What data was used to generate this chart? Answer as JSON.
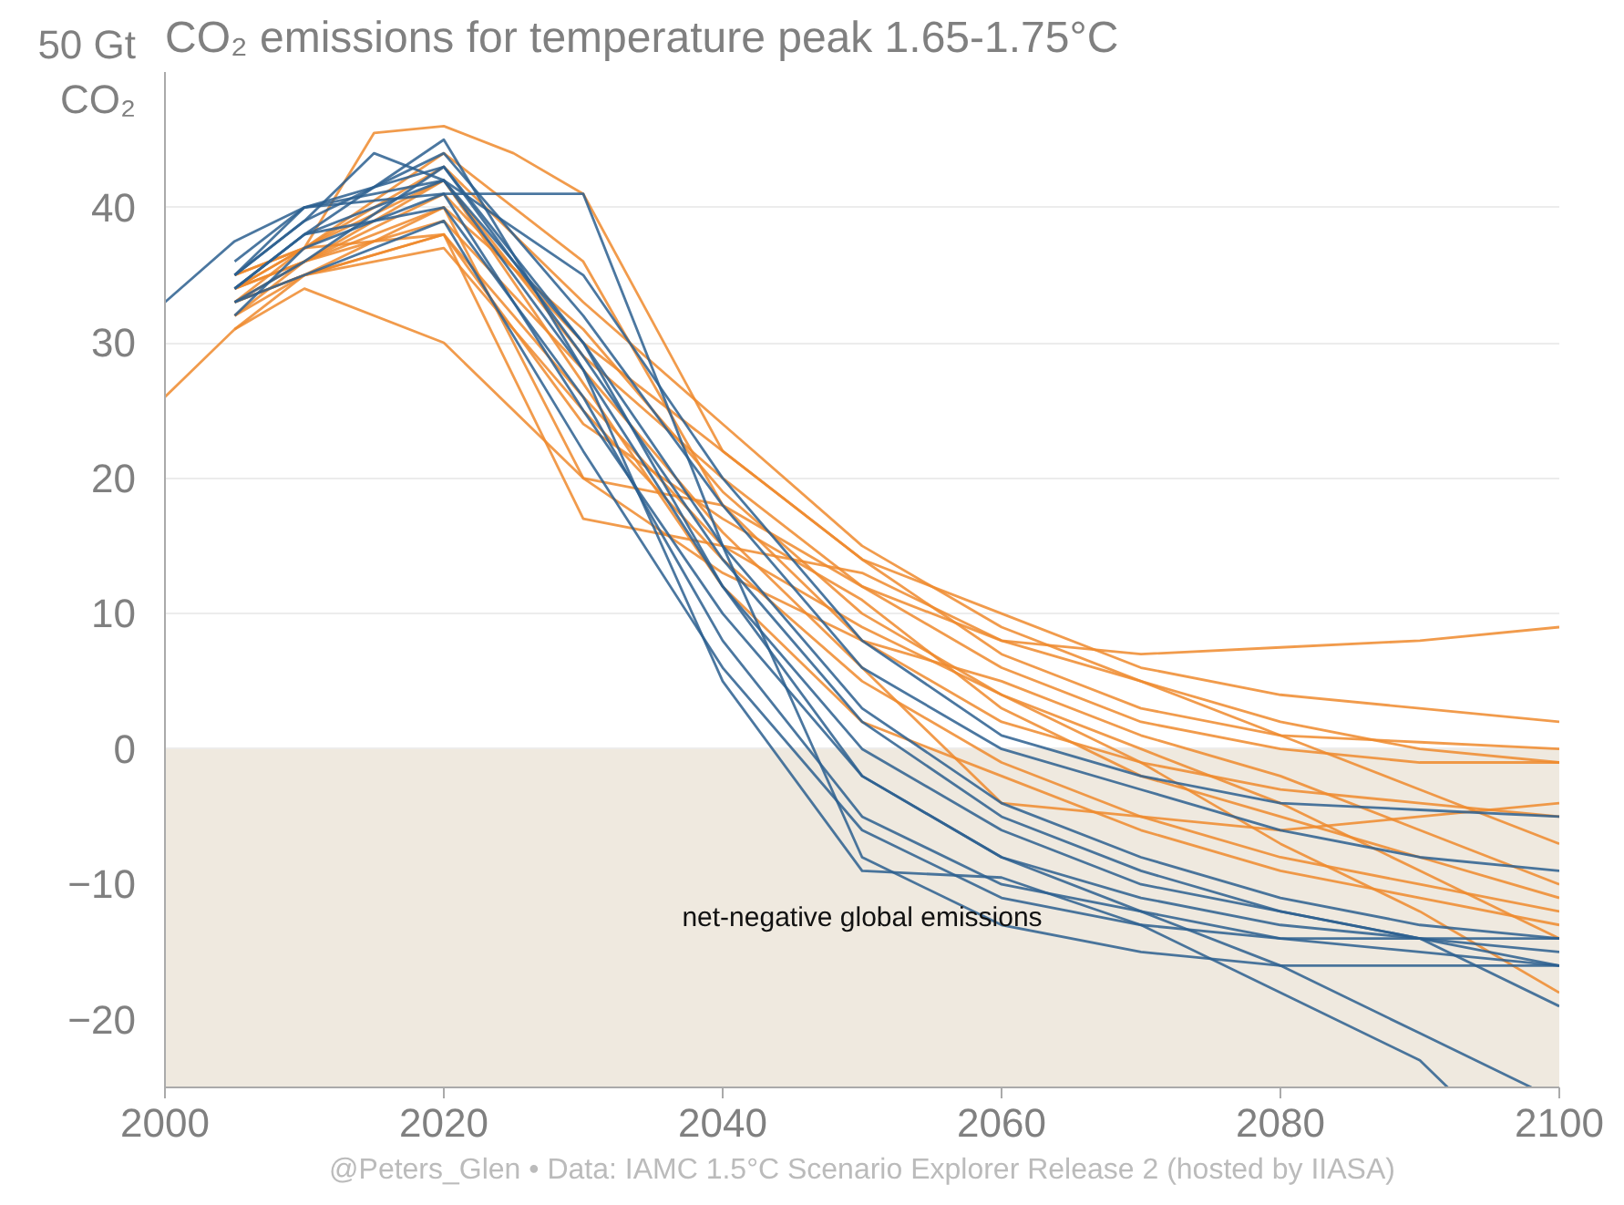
{
  "chart_data": {
    "type": "line",
    "title": "CO₂ emissions for temperature peak 1.65-1.75°C",
    "x": [
      2005,
      2010,
      2020,
      2030,
      2040,
      2050,
      2060,
      2070,
      2080,
      2090,
      2100
    ],
    "series": [
      {
        "color": "#ee8a2d",
        "x": [
          2000,
          2005,
          2010,
          2020,
          2030,
          2040,
          2050,
          2060,
          2070,
          2080,
          2090,
          2100
        ],
        "values": [
          26,
          31,
          35,
          40,
          20,
          18,
          12,
          8,
          7,
          7.5,
          8,
          9
        ]
      },
      {
        "color": "#ee8a2d",
        "x": [
          2005,
          2010,
          2015,
          2020,
          2025,
          2030,
          2040,
          2050,
          2060,
          2070,
          2080,
          2090,
          2100
        ],
        "values": [
          34,
          37,
          45.5,
          46,
          44,
          41,
          22,
          14,
          10,
          6,
          4,
          3,
          2
        ]
      },
      {
        "color": "#ee8a2d",
        "values": [
          33,
          35,
          38,
          17,
          15,
          13,
          8,
          5,
          2,
          0,
          -1
        ]
      },
      {
        "color": "#ee8a2d",
        "values": [
          32,
          36,
          42,
          29,
          20,
          12,
          6,
          2,
          0,
          -1,
          -1
        ]
      },
      {
        "color": "#ee8a2d",
        "values": [
          34,
          37,
          44,
          36,
          18,
          8,
          2,
          -1,
          -3,
          -4,
          -5
        ]
      },
      {
        "color": "#ee8a2d",
        "values": [
          33,
          35,
          37,
          25,
          14,
          5,
          -1,
          -5,
          -8,
          -10,
          -12
        ]
      },
      {
        "color": "#ee8a2d",
        "values": [
          31,
          34,
          30,
          20,
          13,
          8,
          5,
          1,
          -2,
          -6,
          -10
        ]
      },
      {
        "color": "#ee8a2d",
        "values": [
          34,
          36,
          41,
          30,
          22,
          14,
          7,
          3,
          1,
          0.5,
          0
        ]
      },
      {
        "color": "#ee8a2d",
        "values": [
          35,
          37,
          43,
          33,
          24,
          15,
          9,
          5,
          1,
          -3,
          -7
        ]
      },
      {
        "color": "#ee8a2d",
        "values": [
          33,
          36,
          39,
          28,
          16,
          6,
          -4,
          -5,
          -6,
          -5,
          -4
        ]
      },
      {
        "color": "#ee8a2d",
        "values": [
          32,
          35,
          38,
          26,
          15,
          9,
          4,
          -1,
          -7,
          -12,
          -18
        ]
      },
      {
        "color": "#ee8a2d",
        "values": [
          34,
          36,
          40,
          31,
          19,
          10,
          4,
          0,
          -4,
          -9,
          -14
        ]
      },
      {
        "color": "#ee8a2d",
        "values": [
          33,
          37,
          42,
          27,
          12,
          2,
          -2,
          -6,
          -9,
          -11,
          -13
        ]
      },
      {
        "color": "#ee8a2d",
        "values": [
          35,
          37,
          38,
          24,
          17,
          11,
          3,
          -2,
          -5,
          -8,
          -11
        ]
      },
      {
        "color": "#2c5f8f",
        "x": [
          2000,
          2005,
          2010,
          2020,
          2030,
          2040,
          2050,
          2060,
          2070,
          2080,
          2090,
          2100
        ],
        "values": [
          33,
          37.5,
          40,
          41,
          41,
          15,
          -8,
          -13,
          -15,
          -16,
          -16,
          -16
        ]
      },
      {
        "color": "#2c5f8f",
        "x": [
          2005,
          2010,
          2015,
          2020,
          2030,
          2040,
          2050,
          2060,
          2070,
          2080,
          2090,
          2092
        ],
        "values": [
          35,
          39,
          44,
          42,
          28,
          5,
          -9,
          -9.5,
          -13,
          -18,
          -23,
          -25
        ]
      },
      {
        "color": "#2c5f8f",
        "values": [
          34,
          38,
          45,
          28,
          12,
          0,
          -6,
          -10,
          -12,
          -14,
          -15
        ]
      },
      {
        "color": "#2c5f8f",
        "values": [
          33,
          36,
          43,
          30,
          15,
          3,
          -4,
          -8,
          -11,
          -13,
          -14
        ]
      },
      {
        "color": "#2c5f8f",
        "values": [
          32,
          37,
          41,
          25,
          10,
          -2,
          -8,
          -11,
          -13,
          -14,
          -16
        ]
      },
      {
        "color": "#2c5f8f",
        "values": [
          35,
          39,
          44,
          32,
          18,
          6,
          0,
          -3,
          -6,
          -8,
          -9
        ]
      },
      {
        "color": "#2c5f8f",
        "values": [
          36,
          40,
          42,
          35,
          20,
          8,
          1,
          -2,
          -4,
          -4.5,
          -5
        ]
      },
      {
        "color": "#2c5f8f",
        "values": [
          34,
          38,
          40,
          26,
          8,
          -5,
          -10,
          -12,
          -14,
          -15,
          -16
        ]
      },
      {
        "color": "#2c5f8f",
        "values": [
          33,
          35,
          39,
          22,
          6,
          -6,
          -11,
          -13,
          -14,
          -14,
          -14
        ]
      },
      {
        "color": "#2c5f8f",
        "values": [
          35,
          40,
          43,
          29,
          14,
          2,
          -5,
          -9,
          -12,
          -14,
          -19
        ]
      },
      {
        "color": "#2c5f8f",
        "x": [
          2005,
          2010,
          2020,
          2030,
          2040,
          2050,
          2060,
          2070,
          2080,
          2090,
          2098
        ],
        "values": [
          34,
          38,
          42,
          30,
          12,
          -2,
          -8,
          -12,
          -16,
          -21,
          -25
        ]
      }
    ],
    "xlim": [
      2000,
      2100
    ],
    "xticks": [
      2000,
      2020,
      2040,
      2060,
      2080,
      2100
    ],
    "ylim": [
      -25,
      50
    ],
    "yticks": [
      -20,
      -10,
      0,
      10,
      20,
      30,
      40,
      {
        "value": 50,
        "label": "50 Gt\nCO₂"
      }
    ],
    "grid": "y",
    "bands": [
      {
        "axis": "y",
        "from": -25,
        "to": 0,
        "label": "net-negative global emissions",
        "color": "#efe9df"
      }
    ],
    "annotations": [
      "@Peters_Glen • Data: IAMC 1.5°C Scenario Explorer Release 2 (hosted by IIASA)"
    ]
  }
}
